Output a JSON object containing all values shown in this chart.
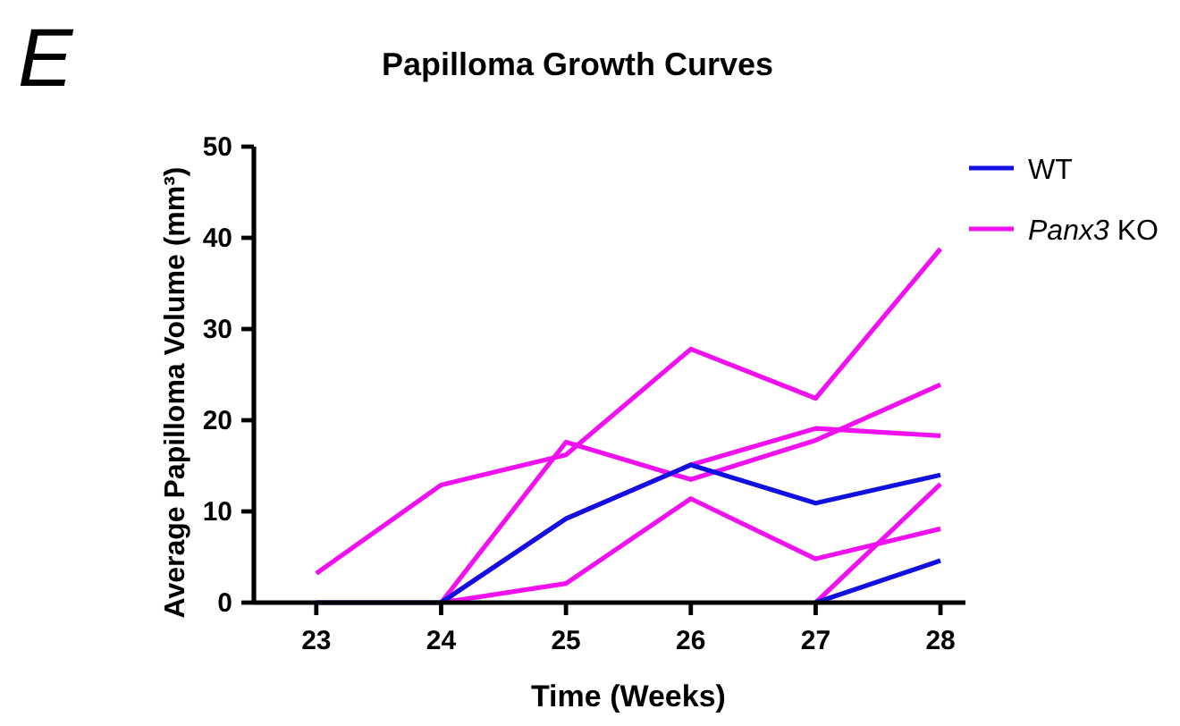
{
  "chart_data": {
    "type": "line",
    "title": "Papilloma Growth Curves",
    "xlabel": "Time (Weeks)",
    "ylabel": "Average Papilloma Volume (mm³)",
    "annotations": [
      "E"
    ],
    "x": [
      23,
      24,
      25,
      26,
      27,
      28
    ],
    "xlim": [
      22.5,
      28.2
    ],
    "xticks": [
      23,
      24,
      25,
      26,
      27,
      28
    ],
    "ylim": [
      0,
      50
    ],
    "yticks": [
      0,
      10,
      20,
      30,
      40,
      50
    ],
    "grid": false,
    "legend": "top right",
    "marker": "none",
    "line_style": "solid",
    "series": [
      {
        "color": "#f010f0",
        "values": [
          3.2,
          12.9,
          16.2,
          27.8,
          22.4,
          38.8
        ]
      },
      {
        "color": "#f010f0",
        "values": [
          null,
          0,
          17.6,
          13.5,
          17.8,
          23.9
        ]
      },
      {
        "color": "#f010f0",
        "values": [
          null,
          0,
          9.2,
          15.1,
          19.1,
          18.3
        ]
      },
      {
        "color": "#f010f0",
        "values": [
          null,
          0,
          2.1,
          11.4,
          4.8,
          8.1
        ]
      },
      {
        "name": "Panx3 KO",
        "color": "#f010f0",
        "values": [
          null,
          null,
          null,
          null,
          0,
          13.0
        ]
      },
      {
        "name": "WT",
        "color": "#1010e0",
        "values": [
          0,
          0,
          9.2,
          15.1,
          10.9,
          14.0
        ]
      },
      {
        "color": "#1010e0",
        "values": [
          null,
          null,
          null,
          null,
          0,
          4.6
        ]
      }
    ]
  }
}
